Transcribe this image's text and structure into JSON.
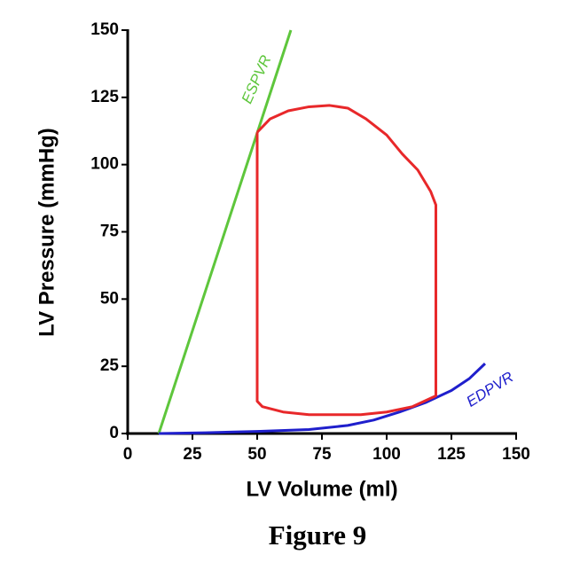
{
  "chart_data": {
    "type": "line",
    "caption": "Figure 9",
    "x_label": "LV Volume (ml)",
    "y_label": "LV Pressure (mmHg)",
    "xlim": [
      0,
      150
    ],
    "xticks": [
      0,
      25,
      50,
      75,
      100,
      125,
      150
    ],
    "ylim": [
      0,
      150
    ],
    "yticks": [
      0,
      25,
      50,
      75,
      100,
      125,
      150
    ],
    "grid": false,
    "series": [
      {
        "name": "ESPVR",
        "color": "#5ec63c",
        "x": [
          12,
          63
        ],
        "values": [
          0,
          150
        ]
      },
      {
        "name": "EDPVR",
        "color": "#1f1fcc",
        "x": [
          12,
          30,
          50,
          70,
          85,
          95,
          105,
          115,
          125,
          132,
          138
        ],
        "values": [
          0,
          0.3,
          0.8,
          1.5,
          3,
          5,
          8,
          11.5,
          16,
          20.5,
          26
        ]
      },
      {
        "name": "PV loop",
        "color": "#e8282a",
        "x": [
          50,
          55,
          62,
          70,
          78,
          85,
          92,
          100,
          106,
          112,
          117,
          119,
          119,
          110,
          100,
          90,
          80,
          70,
          60,
          52,
          50,
          50
        ],
        "values": [
          112,
          117,
          120,
          121.5,
          122,
          121,
          117,
          111,
          104,
          98,
          90,
          85,
          14,
          10,
          8,
          7,
          7,
          7,
          8,
          10,
          12,
          112
        ]
      }
    ]
  }
}
